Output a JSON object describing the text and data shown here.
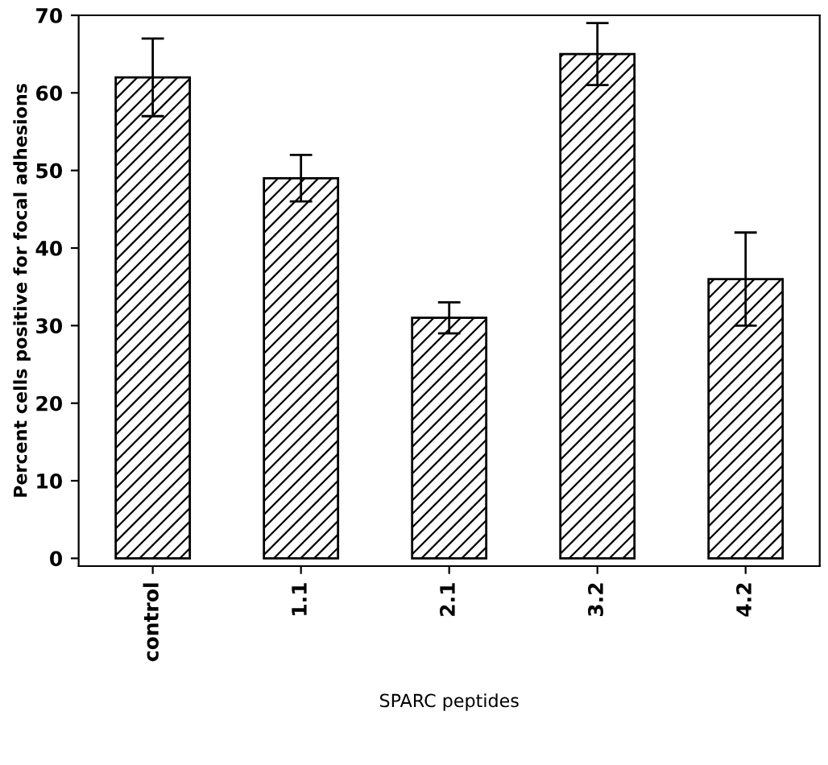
{
  "chart_data": {
    "type": "bar",
    "xlabel": "SPARC peptides",
    "ylabel": "Percent cells positive for focal adhesions",
    "categories": [
      "control",
      "1.1",
      "2.1",
      "3.2",
      "4.2"
    ],
    "values": [
      62,
      49,
      31,
      65,
      36
    ],
    "errors": [
      5,
      3,
      2,
      4,
      6
    ],
    "color": "#000000",
    "ylim": [
      -1,
      70
    ],
    "yticks": [
      0,
      10,
      20,
      30,
      40,
      50,
      60,
      70
    ],
    "grid": false
  }
}
